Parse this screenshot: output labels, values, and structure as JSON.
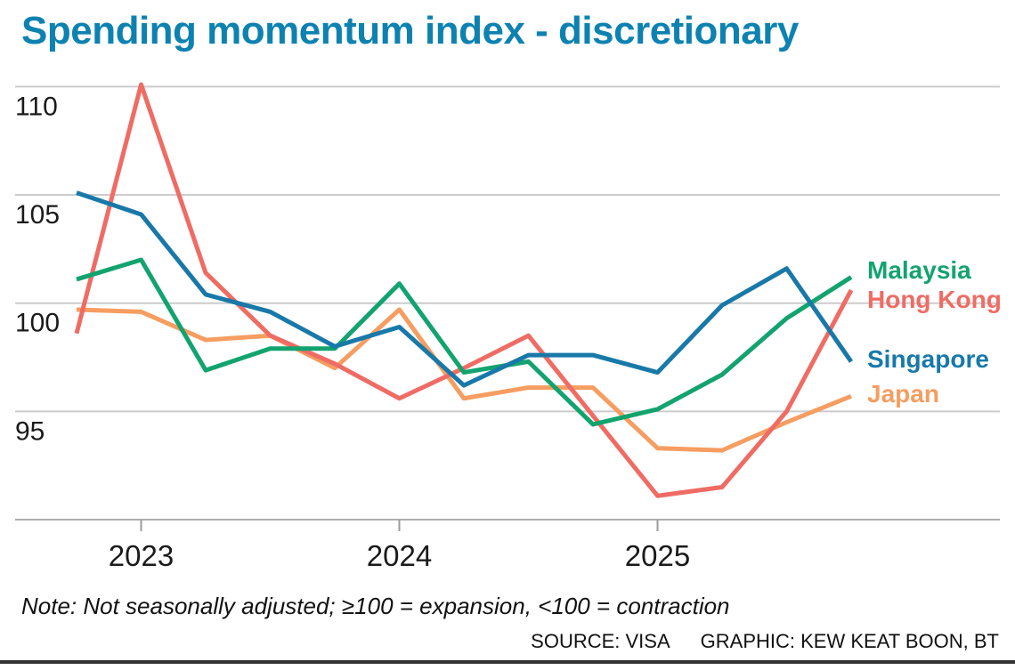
{
  "title": "Spending momentum index - discretionary",
  "note": "Note: Not seasonally adjusted; ≥100 = expansion, <100 = contraction",
  "source": "SOURCE: VISA",
  "graphic_credit": "GRAPHIC: KEW KEAT BOON, BT",
  "colors": {
    "title": "#0d82b1",
    "grid": "#cccccc",
    "axis_line": "#adadad",
    "tick": "#9b9b9b",
    "tick_text": "#1a1a1a",
    "bottom_rule": "#333333"
  },
  "chart_data": {
    "type": "line",
    "x_unit": "quarterly",
    "x_start_label": "Q4 2022",
    "x_tick_labels": [
      "2023",
      "2024",
      "2025"
    ],
    "x_tick_indices": [
      1,
      5,
      9
    ],
    "y_ticks": [
      95,
      100,
      105,
      110
    ],
    "ylim": [
      90,
      111.5
    ],
    "grid": true,
    "legend_position": "right-of-lines",
    "series": [
      {
        "name": "Malaysia",
        "color": "#12a36e",
        "values": [
          101.1,
          102.0,
          96.9,
          97.9,
          97.9,
          100.9,
          96.8,
          97.3,
          94.4,
          95.1,
          96.7,
          99.3,
          101.2
        ]
      },
      {
        "name": "Hong Kong",
        "color": "#ef6c64",
        "values": [
          98.6,
          110.1,
          101.4,
          98.5,
          97.2,
          95.6,
          97.0,
          98.5,
          94.8,
          91.1,
          91.5,
          95.0,
          100.6
        ]
      },
      {
        "name": "Singapore",
        "color": "#1879a9",
        "values": [
          105.1,
          104.1,
          100.4,
          99.6,
          98.0,
          98.9,
          96.2,
          97.6,
          97.6,
          96.8,
          99.9,
          101.6,
          97.3
        ]
      },
      {
        "name": "Japan",
        "color": "#f69d61",
        "values": [
          99.7,
          99.6,
          98.3,
          98.5,
          97.0,
          99.7,
          95.6,
          96.1,
          96.1,
          93.3,
          93.2,
          94.5,
          95.7
        ]
      }
    ]
  }
}
